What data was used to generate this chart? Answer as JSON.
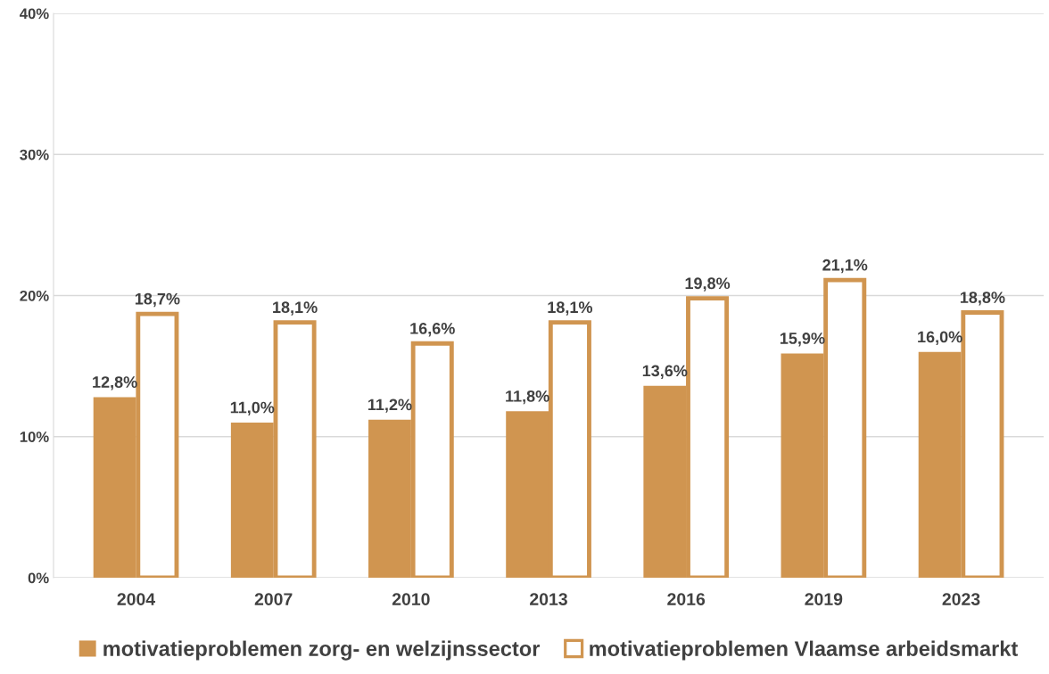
{
  "chart_data": {
    "type": "bar",
    "categories": [
      "2004",
      "2007",
      "2010",
      "2013",
      "2016",
      "2019",
      "2023"
    ],
    "series": [
      {
        "name": "motivatieproblemen zorg- en welzijnssector",
        "color": "#d09550",
        "values": [
          12.8,
          11.0,
          11.2,
          11.8,
          13.6,
          15.9,
          16.0
        ],
        "value_labels": [
          "12,8%",
          "11,0%",
          "11,2%",
          "11,8%",
          "13,6%",
          "15,9%",
          "16,0%"
        ]
      },
      {
        "name": "motivatieproblemen Vlaamse arbeidsmarkt",
        "color": "#d09550",
        "values": [
          18.7,
          18.1,
          16.6,
          18.1,
          19.8,
          21.1,
          18.8
        ],
        "value_labels": [
          "18,7%",
          "18,1%",
          "16,6%",
          "18,1%",
          "19,8%",
          "21,1%",
          "18,8%"
        ]
      }
    ],
    "ylim": [
      0,
      40
    ],
    "yticks": [
      {
        "value": 0,
        "label": "0%"
      },
      {
        "value": 10,
        "label": "10%"
      },
      {
        "value": 20,
        "label": "20%"
      },
      {
        "value": 30,
        "label": "30%"
      },
      {
        "value": 40,
        "label": "40%"
      }
    ],
    "grid": "y",
    "legend": "bottom"
  }
}
